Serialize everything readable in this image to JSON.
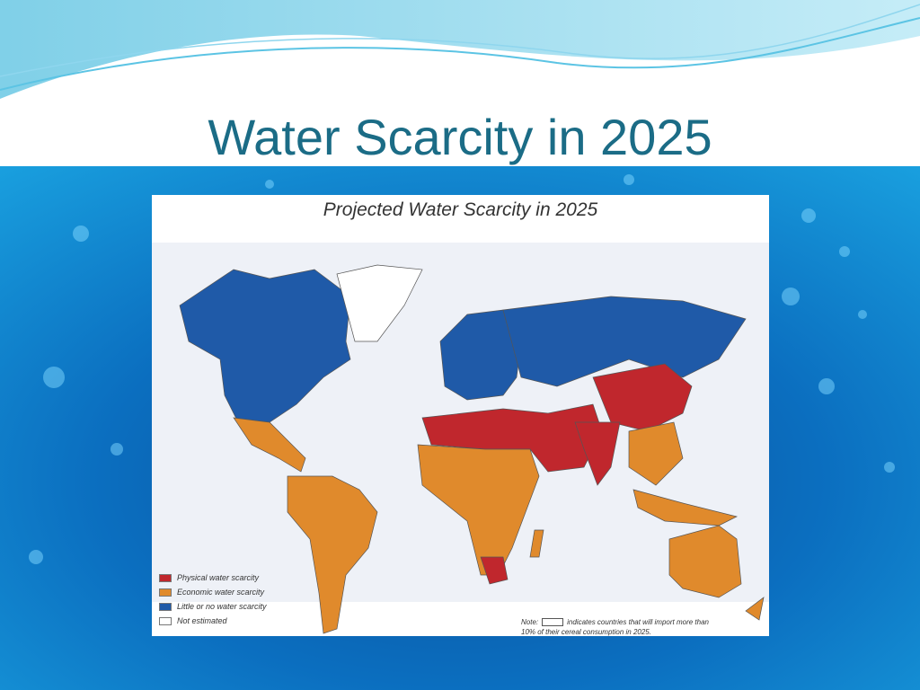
{
  "slide": {
    "title": "Water Scarcity in 2025"
  },
  "map": {
    "title": "Projected Water Scarcity in 2025",
    "legend": [
      {
        "label": "Physical water scarcity",
        "color": "#c0272d"
      },
      {
        "label": "Economic water scarcity",
        "color": "#e08a2c"
      },
      {
        "label": "Little or no water scarcity",
        "color": "#1f5aa8"
      },
      {
        "label": "Not estimated",
        "color": "#ffffff"
      }
    ],
    "note": {
      "label": "Note:",
      "text": "indicates countries that will import more than 10% of their cereal consumption in 2025."
    }
  }
}
